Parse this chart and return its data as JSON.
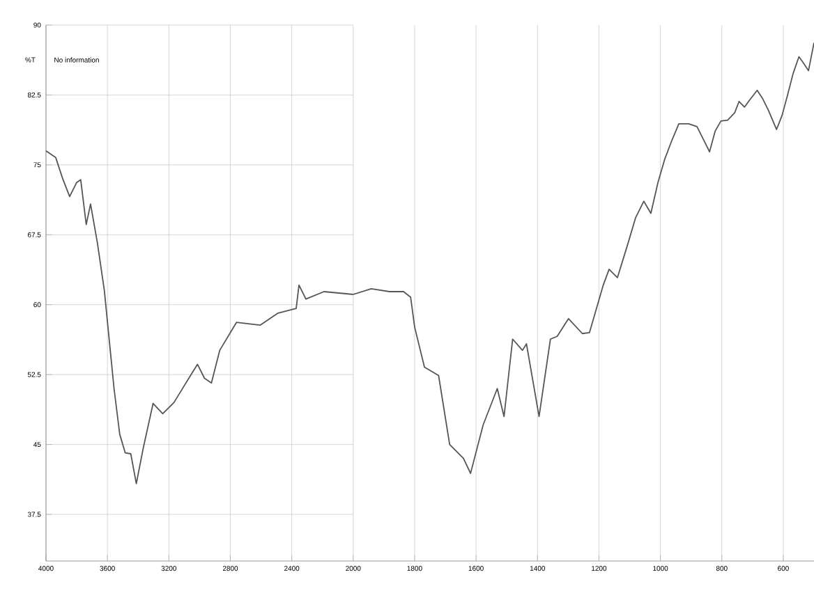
{
  "chart_data": [
    {
      "type": "line",
      "ylabel": "%T",
      "annotations": [
        "No information"
      ],
      "x": [
        4000,
        3937,
        3891,
        3846,
        3801,
        3774,
        3738,
        3710,
        3665,
        3620,
        3557,
        3520,
        3484,
        3448,
        3412,
        3367,
        3303,
        3240,
        3167,
        3059,
        3014,
        2968,
        2923,
        2869,
        2760,
        2606,
        2489,
        2371,
        2353,
        2308,
        2190,
        2000
      ],
      "series": [
        {
          "color": "#555555",
          "values": [
            76.5,
            75.8,
            73.5,
            71.6,
            73.1,
            73.4,
            68.6,
            70.8,
            66.6,
            61.5,
            51.0,
            46.1,
            44.1,
            44.0,
            40.8,
            44.6,
            49.4,
            48.3,
            49.5,
            52.4,
            53.6,
            52.1,
            51.6,
            55.1,
            58.1,
            57.8,
            59.1,
            59.6,
            62.1,
            60.6,
            61.4,
            61.1
          ]
        }
      ],
      "xlim": [
        4000,
        2000
      ],
      "xticks": [
        4000,
        3600,
        3200,
        2800,
        2400,
        2000
      ],
      "ylim": [
        32.5,
        90
      ],
      "yticks": [
        37.5,
        45,
        52.5,
        60,
        67.5,
        75,
        82.5,
        90
      ],
      "grid": true,
      "marker": "none",
      "line_style": "solid"
    },
    {
      "type": "line",
      "x": [
        2000,
        1941,
        1882,
        1836,
        1813,
        1800,
        1768,
        1722,
        1686,
        1641,
        1618,
        1577,
        1531,
        1509,
        1481,
        1449,
        1436,
        1395,
        1358,
        1336,
        1299,
        1254,
        1231,
        1208,
        1186,
        1167,
        1140,
        1108,
        1081,
        1054,
        1031,
        1008,
        986,
        963,
        940,
        908,
        881,
        858,
        840,
        822,
        803,
        781,
        758,
        744,
        726,
        713,
        685,
        667,
        649,
        622,
        604,
        586,
        568,
        549,
        536,
        518,
        500
      ],
      "series": [
        {
          "color": "#555555",
          "values": [
            61.1,
            61.7,
            61.4,
            61.4,
            60.8,
            57.6,
            53.3,
            52.4,
            45.0,
            43.5,
            41.9,
            47.1,
            51.0,
            48.0,
            56.3,
            55.1,
            55.8,
            48.0,
            56.3,
            56.6,
            58.5,
            56.9,
            57.0,
            59.6,
            62.1,
            63.8,
            62.9,
            66.3,
            69.3,
            71.1,
            69.8,
            73.1,
            75.6,
            77.6,
            79.4,
            79.4,
            79.1,
            77.6,
            76.4,
            78.6,
            79.7,
            79.8,
            80.6,
            81.8,
            81.2,
            81.8,
            83.0,
            82.1,
            80.9,
            78.8,
            80.3,
            82.5,
            84.8,
            86.6,
            86.0,
            85.1,
            88.1
          ]
        }
      ],
      "xlim": [
        2000,
        500
      ],
      "xticks": [
        1800,
        1600,
        1400,
        1200,
        1000,
        800,
        600
      ],
      "ylim": [
        32.5,
        90
      ],
      "yticks": [
        37.5,
        45,
        52.5,
        60,
        67.5,
        75,
        82.5,
        90
      ],
      "tick_labels": "x",
      "grid": true,
      "marker": "none",
      "line_style": "solid"
    }
  ]
}
